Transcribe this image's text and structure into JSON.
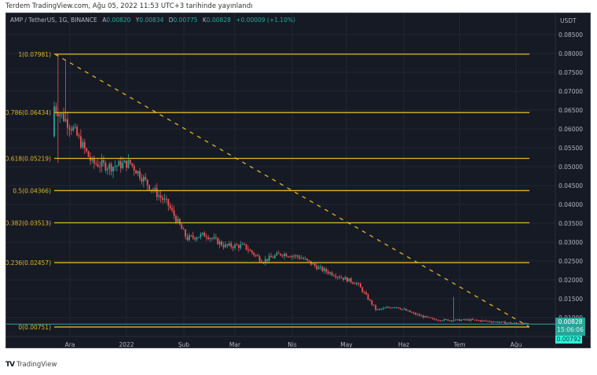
{
  "caption": "Terdem TradingView.com, Ağu 05, 2022 11:53 UTC+3 tarihinde yayınlandı",
  "legend": {
    "symbol": "AMP / TetherUS, 1G, BINANCE",
    "open_label": "A",
    "open": "0.00820",
    "high_label": "Y",
    "high": "0.00834",
    "low_label": "D",
    "low": "0.00775",
    "close_label": "K",
    "close": "0.00828",
    "change": "+0.00009 (+1.10%)"
  },
  "price_axis": {
    "currency": "USDT",
    "last_price": "0.00828",
    "countdown": "15:06:06",
    "second_tag": "0.00792"
  },
  "footer": {
    "logo": "TV",
    "brand": "TradingView"
  },
  "colors": {
    "background": "#161a25",
    "up": "#26a69a",
    "down": "#ef5350",
    "fib": "#e0b527",
    "last_tag": "#26a69a",
    "second_tag": "#2ef2dc"
  },
  "chart_data": {
    "type": "candlestick",
    "title": "AMP / TetherUS, 1G, BINANCE",
    "xlabel": "",
    "ylabel": "USDT",
    "ylim": [
      0.0075,
      0.088
    ],
    "grid": true,
    "y_ticks": [
      "0.08500",
      "0.08000",
      "0.07500",
      "0.07000",
      "0.06500",
      "0.06000",
      "0.05500",
      "0.05000",
      "0.04500",
      "0.04000",
      "0.03500",
      "0.03000",
      "0.02500",
      "0.02000",
      "0.01500",
      "0.01000"
    ],
    "x_ticks": [
      "Ara",
      "2022",
      "Şub",
      "Mar",
      "Nis",
      "May",
      "Haz",
      "Tem",
      "Ağu"
    ],
    "fibonacci": [
      {
        "level": "1",
        "price": 0.07981,
        "label": "1(0.07981)"
      },
      {
        "level": "0.786",
        "price": 0.06434,
        "label": "0.786(0.06434)"
      },
      {
        "level": "0.618",
        "price": 0.05219,
        "label": "0.618(0.05219)"
      },
      {
        "level": "0.5",
        "price": 0.04366,
        "label": "0.5(0.04366)"
      },
      {
        "level": "0.382",
        "price": 0.03513,
        "label": "0.382(0.03513)"
      },
      {
        "level": "0.236",
        "price": 0.02457,
        "label": "0.236(0.02457)"
      },
      {
        "level": "0",
        "price": 0.00751,
        "label": "0(0.00751)"
      }
    ],
    "trendline": {
      "style": "dashed",
      "from": {
        "x": "mid-Kas 2021",
        "price": 0.07981
      },
      "to": {
        "x": "early Ağu 2022",
        "price": 0.00751
      }
    },
    "series": [
      {
        "name": "approx close path",
        "points": [
          {
            "x": "Kas-end",
            "close": 0.066
          },
          {
            "x": "Ara-start",
            "close": 0.06
          },
          {
            "x": "Ara-mid",
            "close": 0.051
          },
          {
            "x": "Ara-end",
            "close": 0.05
          },
          {
            "x": "2022-start",
            "close": 0.051
          },
          {
            "x": "Oca-mid",
            "close": 0.045
          },
          {
            "x": "Oca-end",
            "close": 0.04
          },
          {
            "x": "Şub-start",
            "close": 0.031
          },
          {
            "x": "Şub-mid",
            "close": 0.032
          },
          {
            "x": "Şub-end",
            "close": 0.029
          },
          {
            "x": "Mar-start",
            "close": 0.029
          },
          {
            "x": "Mar-mid",
            "close": 0.025
          },
          {
            "x": "Mar-end",
            "close": 0.027
          },
          {
            "x": "Nis-start",
            "close": 0.026
          },
          {
            "x": "Nis-mid",
            "close": 0.023
          },
          {
            "x": "Nis-end",
            "close": 0.021
          },
          {
            "x": "May-start",
            "close": 0.019
          },
          {
            "x": "May-mid",
            "close": 0.012
          },
          {
            "x": "May-end",
            "close": 0.013
          },
          {
            "x": "Haz-start",
            "close": 0.011
          },
          {
            "x": "Haz-mid",
            "close": 0.0095
          },
          {
            "x": "Haz-end",
            "close": 0.0093
          },
          {
            "x": "Tem-start",
            "close": 0.0094
          },
          {
            "x": "Tem-mid",
            "close": 0.009
          },
          {
            "x": "Tem-end",
            "close": 0.0086
          },
          {
            "x": "Ağu-start",
            "close": 0.00828
          }
        ]
      }
    ]
  }
}
